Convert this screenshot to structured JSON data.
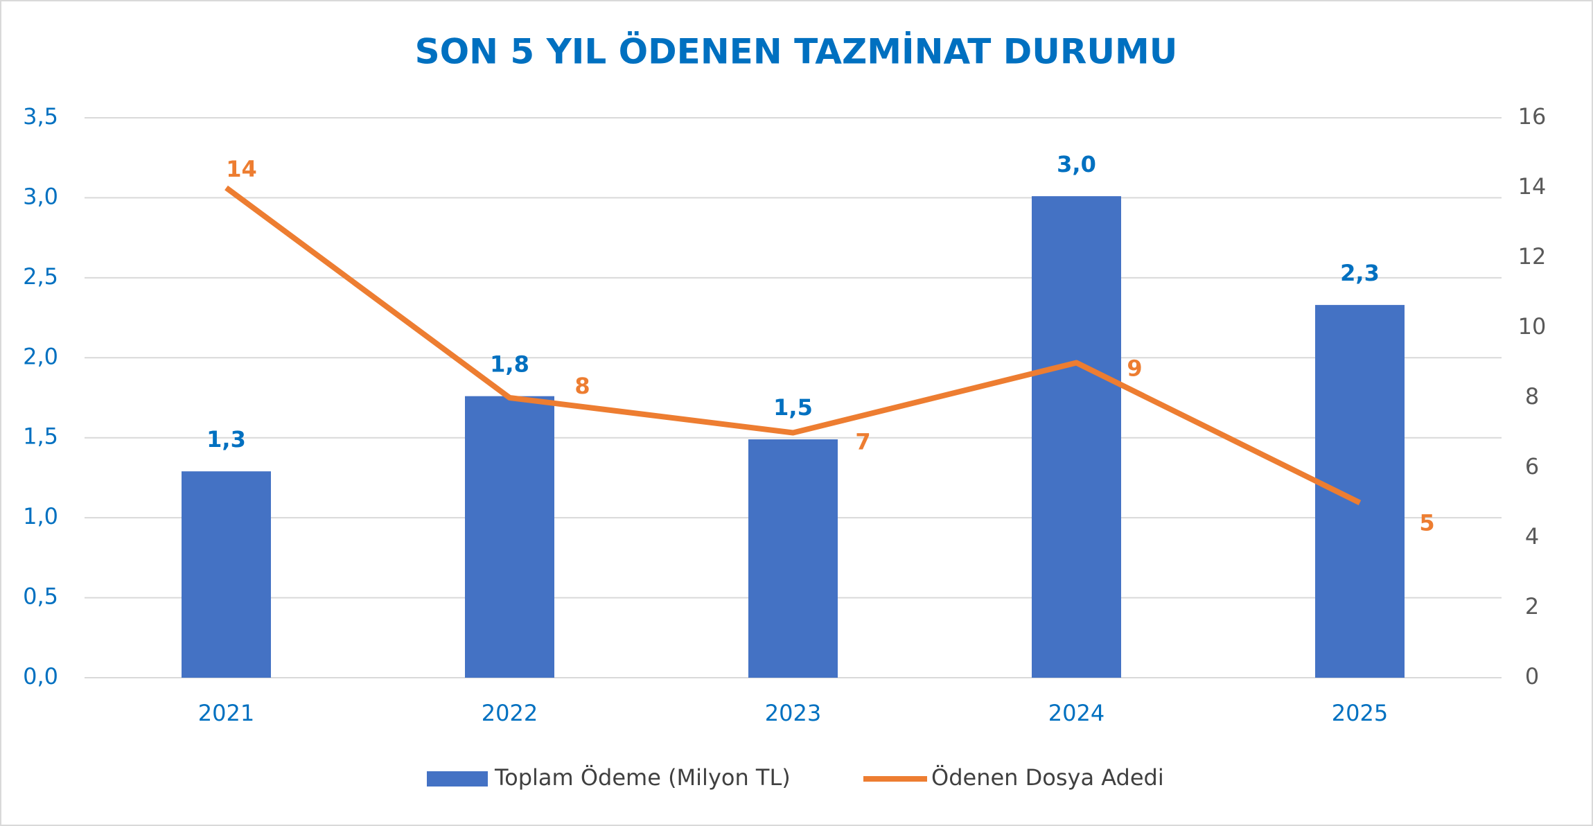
{
  "chart_data": {
    "type": "bar-line",
    "title": "SON 5 YIL ÖDENEN TAZMİNAT DURUMU",
    "categories": [
      "2021",
      "2022",
      "2023",
      "2024",
      "2025"
    ],
    "series": [
      {
        "name": "Toplam Ödeme (Milyon TL)",
        "type": "bar",
        "axis": "y",
        "color": "#4472c4",
        "values": [
          1.29,
          1.76,
          1.49,
          3.01,
          2.33
        ],
        "value_labels": [
          "1,3",
          "1,8",
          "1,5",
          "3,0",
          "2,3"
        ]
      },
      {
        "name": "Ödenen Dosya Adedi",
        "type": "line",
        "axis": "y2",
        "color": "#ed7d31",
        "values": [
          14,
          8,
          7,
          9,
          5
        ]
      }
    ],
    "ylim": [
      0,
      3.5
    ],
    "yticks": [
      {
        "value": 0,
        "label": "0,0"
      },
      {
        "value": 0.5,
        "label": "0,5"
      },
      {
        "value": 1,
        "label": "1,0"
      },
      {
        "value": 1.5,
        "label": "1,5"
      },
      {
        "value": 2,
        "label": "2,0"
      },
      {
        "value": 2.5,
        "label": "2,5"
      },
      {
        "value": 3,
        "label": "3,0"
      },
      {
        "value": 3.5,
        "label": "3,5"
      }
    ],
    "y2lim": [
      0,
      16
    ],
    "y2ticks": [
      0,
      2,
      4,
      6,
      8,
      10,
      12,
      14,
      16
    ],
    "grid": true,
    "legend": "bottom"
  }
}
